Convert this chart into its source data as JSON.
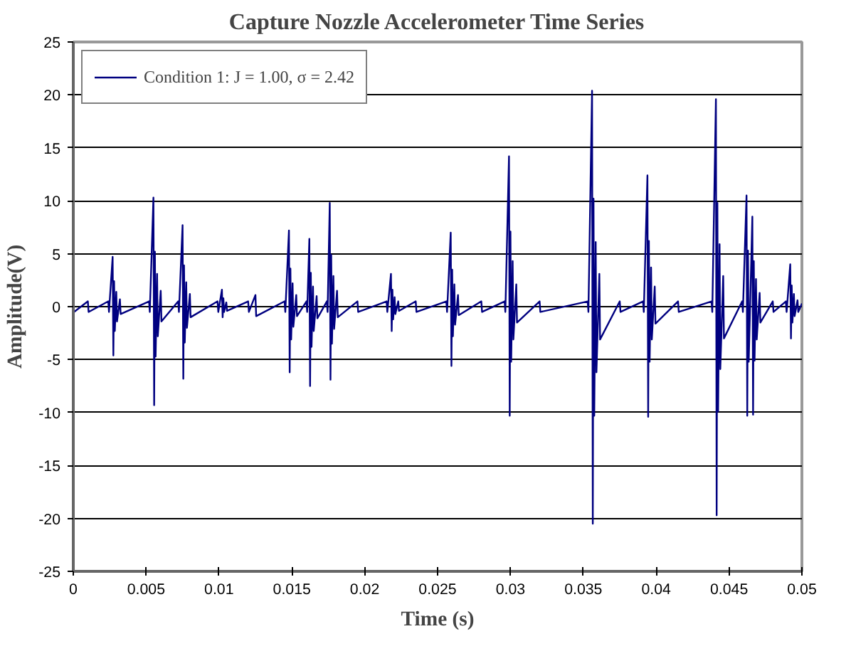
{
  "chart_data": {
    "type": "line",
    "title": "Capture Nozzle Accelerometer Time Series",
    "xlabel": "Time (s)",
    "ylabel": "Amplitude(V)",
    "xlim": [
      0,
      0.05
    ],
    "xticks": [
      0,
      0.005,
      0.01,
      0.015,
      0.02,
      0.025,
      0.03,
      0.035,
      0.04,
      0.045,
      0.05
    ],
    "ylim": [
      -25,
      25
    ],
    "yticks": [
      -25,
      -20,
      -15,
      -10,
      -5,
      0,
      5,
      10,
      15,
      20,
      25
    ],
    "grid": "y",
    "legend": "top left",
    "marker": "none",
    "line_style": "solid",
    "series": [
      {
        "name": "Condition 1: J = 1.00, σ = 2.42",
        "color": "#000080",
        "x": [
          0,
          5e-05,
          0.001,
          0.00105,
          0.0024,
          0.00245,
          0.0027,
          0.00275,
          0.0028,
          0.00285,
          0.00295,
          0.003,
          0.0032,
          0.00325,
          0.0052,
          0.00525,
          0.0055,
          0.00555,
          0.0056,
          0.00565,
          0.00575,
          0.0058,
          0.006,
          0.00605,
          0.0072,
          0.00725,
          0.0075,
          0.00755,
          0.0076,
          0.00765,
          0.00775,
          0.0078,
          0.008,
          0.00805,
          0.0099,
          0.00995,
          0.0102,
          0.01025,
          0.0103,
          0.01035,
          0.0105,
          0.01055,
          0.012,
          0.01205,
          0.0125,
          0.01255,
          0.0145,
          0.01455,
          0.0148,
          0.01485,
          0.0149,
          0.01495,
          0.01505,
          0.0151,
          0.0153,
          0.01535,
          0.016,
          0.01605,
          0.0162,
          0.01625,
          0.0163,
          0.01635,
          0.01645,
          0.0165,
          0.0167,
          0.01675,
          0.0174,
          0.01745,
          0.0176,
          0.01765,
          0.0177,
          0.01775,
          0.01785,
          0.0179,
          0.0181,
          0.01815,
          0.0195,
          0.01955,
          0.0215,
          0.02155,
          0.0218,
          0.02185,
          0.0219,
          0.02195,
          0.02205,
          0.0221,
          0.0223,
          0.02235,
          0.0235,
          0.02355,
          0.0256,
          0.02565,
          0.0259,
          0.02595,
          0.026,
          0.02605,
          0.02615,
          0.0262,
          0.0264,
          0.02645,
          0.028,
          0.02805,
          0.0296,
          0.02965,
          0.0299,
          0.02995,
          0.03,
          0.03005,
          0.03015,
          0.0302,
          0.0304,
          0.03045,
          0.032,
          0.03205,
          0.0353,
          0.03535,
          0.0356,
          0.03565,
          0.0357,
          0.03575,
          0.03585,
          0.0359,
          0.0361,
          0.03615,
          0.0375,
          0.03755,
          0.0391,
          0.03915,
          0.0394,
          0.03945,
          0.0395,
          0.03955,
          0.03965,
          0.0397,
          0.0399,
          0.03995,
          0.0415,
          0.04155,
          0.0438,
          0.04385,
          0.0441,
          0.04415,
          0.0442,
          0.04425,
          0.04435,
          0.0444,
          0.0446,
          0.04465,
          0.0459,
          0.04595,
          0.0462,
          0.04625,
          0.0463,
          0.04635,
          0.0466,
          0.04665,
          0.0467,
          0.04675,
          0.04685,
          0.0469,
          0.0471,
          0.04715,
          0.048,
          0.04805,
          0.0489,
          0.04895,
          0.0492,
          0.04925,
          0.0493,
          0.04935,
          0.04945,
          0.0495,
          0.0497,
          0.04975,
          0.05
        ],
        "values": [
          0.5,
          -0.5,
          0.5,
          -0.5,
          0.5,
          -0.5,
          4.7,
          -4.6,
          2.4,
          -2.3,
          1.4,
          -1.4,
          0.7,
          -0.7,
          0.5,
          -0.5,
          10.3,
          -9.3,
          5.2,
          -4.7,
          3.1,
          -2.8,
          1.5,
          -1.4,
          0.5,
          -0.5,
          7.7,
          -6.8,
          3.9,
          -3.4,
          2.3,
          -2.0,
          1.2,
          -1.0,
          0.5,
          -0.5,
          1.6,
          -1.0,
          0.8,
          -0.5,
          0.4,
          -0.4,
          0.5,
          -0.5,
          1.1,
          -0.9,
          0.5,
          -0.5,
          7.2,
          -6.2,
          3.6,
          -3.1,
          2.2,
          -1.9,
          1.1,
          -0.9,
          0.5,
          -0.5,
          6.4,
          -7.5,
          3.2,
          -3.8,
          1.9,
          -2.3,
          1.0,
          -1.1,
          0.5,
          -0.5,
          9.8,
          -6.9,
          4.9,
          -3.5,
          2.9,
          -2.1,
          1.5,
          -1.0,
          0.5,
          -0.5,
          0.5,
          -0.5,
          3.1,
          -2.3,
          1.6,
          -1.2,
          0.9,
          -0.7,
          0.5,
          -0.4,
          0.5,
          -0.5,
          0.5,
          -0.5,
          7.0,
          -5.6,
          3.5,
          -2.8,
          2.1,
          -1.7,
          1.1,
          -0.8,
          0.5,
          -0.5,
          0.5,
          -0.5,
          14.2,
          -10.3,
          7.1,
          -5.2,
          4.3,
          -3.1,
          2.1,
          -1.5,
          0.5,
          -0.5,
          0.5,
          -0.5,
          20.4,
          -20.5,
          10.2,
          -10.3,
          6.1,
          -6.2,
          3.1,
          -3.1,
          0.5,
          -0.5,
          0.5,
          -0.5,
          12.4,
          -10.4,
          6.2,
          -5.2,
          3.7,
          -3.1,
          1.9,
          -1.6,
          0.5,
          -0.5,
          0.5,
          -0.5,
          19.6,
          -19.7,
          9.8,
          -9.9,
          5.9,
          -5.9,
          2.9,
          -3.0,
          0.5,
          -0.5,
          10.5,
          -10.3,
          5.3,
          -5.2,
          8.5,
          -10.2,
          4.3,
          -5.1,
          2.6,
          -3.1,
          1.3,
          -1.5,
          0.5,
          -0.5,
          0.5,
          -0.5,
          4.0,
          -3.0,
          2.0,
          -1.5,
          1.2,
          -0.9,
          0.6,
          -0.5,
          0.3
        ]
      }
    ]
  }
}
